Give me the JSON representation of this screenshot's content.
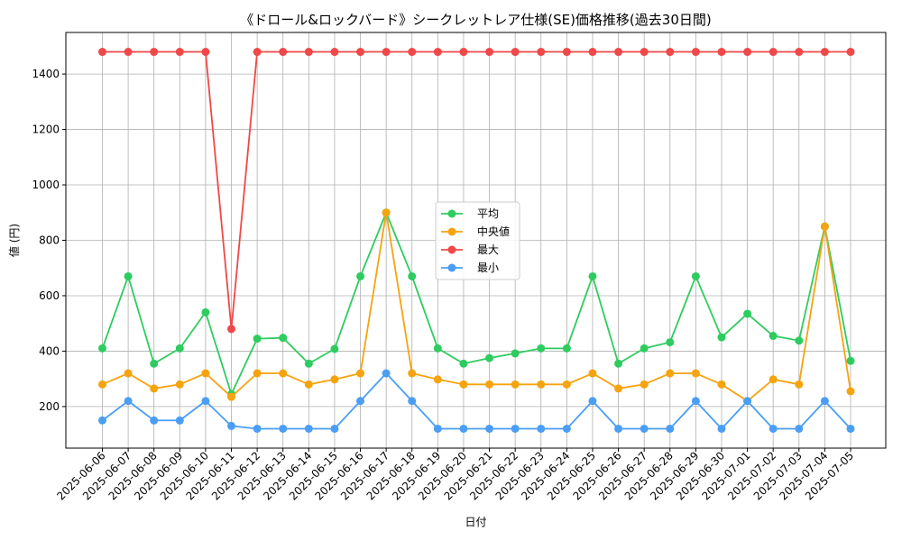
{
  "chart_data": {
    "type": "line",
    "title": "《ドロール&ロックバード》シークレットレア仕様(SE)価格推移(過去30日間)",
    "xlabel": "日付",
    "ylabel": "値 (円)",
    "ylim": [
      50,
      1550
    ],
    "yticks": [
      200,
      400,
      600,
      800,
      1000,
      1200,
      1400
    ],
    "grid": true,
    "legend_position": "center",
    "categories": [
      "2025-06-06",
      "2025-06-07",
      "2025-06-08",
      "2025-06-09",
      "2025-06-10",
      "2025-06-11",
      "2025-06-12",
      "2025-06-13",
      "2025-06-14",
      "2025-06-15",
      "2025-06-16",
      "2025-06-17",
      "2025-06-18",
      "2025-06-19",
      "2025-06-20",
      "2025-06-21",
      "2025-06-22",
      "2025-06-23",
      "2025-06-24",
      "2025-06-25",
      "2025-06-26",
      "2025-06-27",
      "2025-06-28",
      "2025-06-29",
      "2025-06-30",
      "2025-07-01",
      "2025-07-02",
      "2025-07-03",
      "2025-07-04",
      "2025-07-05"
    ],
    "series": [
      {
        "name": "平均",
        "color": "#2ecc60",
        "values": [
          410,
          670,
          355,
          410,
          540,
          245,
          445,
          448,
          355,
          408,
          670,
          900,
          670,
          410,
          355,
          375,
          392,
          410,
          410,
          670,
          355,
          410,
          432,
          670,
          450,
          535,
          455,
          438,
          850,
          365
        ]
      },
      {
        "name": "中央値",
        "color": "#f5a30f",
        "values": [
          280,
          320,
          265,
          280,
          320,
          235,
          320,
          320,
          280,
          298,
          320,
          900,
          320,
          298,
          280,
          280,
          280,
          280,
          280,
          320,
          265,
          280,
          320,
          320,
          280,
          220,
          298,
          280,
          850,
          255
        ]
      },
      {
        "name": "最大",
        "color": "#f04848",
        "values": [
          1480,
          1480,
          1480,
          1480,
          1480,
          480,
          1480,
          1480,
          1480,
          1480,
          1480,
          1480,
          1480,
          1480,
          1480,
          1480,
          1480,
          1480,
          1480,
          1480,
          1480,
          1480,
          1480,
          1480,
          1480,
          1480,
          1480,
          1480,
          1480,
          1480
        ]
      },
      {
        "name": "最小",
        "color": "#4b9ef5",
        "values": [
          150,
          220,
          150,
          150,
          220,
          130,
          120,
          120,
          120,
          120,
          220,
          320,
          220,
          120,
          120,
          120,
          120,
          120,
          120,
          220,
          120,
          120,
          120,
          220,
          120,
          220,
          120,
          120,
          220,
          120
        ]
      }
    ]
  }
}
